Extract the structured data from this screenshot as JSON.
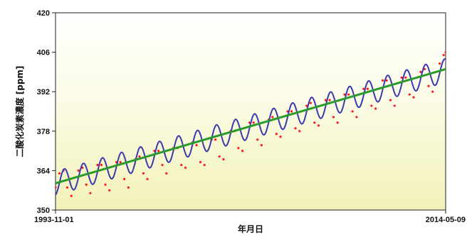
{
  "chart_data": {
    "type": "scatter",
    "title": "",
    "xlabel": "年月日",
    "ylabel": "二酸化炭素濃度 [ppm]",
    "x_ticks": [
      "1993-11-01",
      "2014-05-09"
    ],
    "y_ticks": [
      350,
      364,
      378,
      392,
      406,
      420
    ],
    "ylim": [
      350,
      420
    ],
    "xlim": [
      "1993-11-01",
      "2014-05-09"
    ],
    "grid": false,
    "background": "yellow-to-white gradient",
    "colors": {
      "observed": "#ff1a1a",
      "fit": "#3a3ab0",
      "trend": "#2a9a2a"
    },
    "series": [
      {
        "kind": "points",
        "color": "#ff1a1a",
        "x": [
          "1993-11-01",
          "1994-01-15",
          "1994-04-01",
          "1994-06-15",
          "1994-09-01",
          "1995-01-15",
          "1995-04-01",
          "1995-06-15",
          "1995-09-01",
          "1996-01-15",
          "1996-04-01",
          "1996-06-15",
          "1996-09-01",
          "1997-01-15",
          "1997-04-01",
          "1997-06-15",
          "1997-09-01",
          "1998-01-15",
          "1998-04-01",
          "1998-06-15",
          "1998-09-01",
          "1999-01-15",
          "1999-04-01",
          "1999-06-15",
          "1999-09-01",
          "2000-01-15",
          "2000-04-01",
          "2000-06-15",
          "2000-09-01",
          "2001-01-15",
          "2001-04-01",
          "2001-06-15",
          "2001-09-01",
          "2002-01-15",
          "2002-04-01",
          "2002-06-15",
          "2002-09-01",
          "2003-01-15",
          "2003-04-01",
          "2003-06-15",
          "2003-09-01",
          "2004-01-15",
          "2004-04-01",
          "2004-06-15",
          "2004-09-01",
          "2005-01-15",
          "2005-04-01",
          "2005-06-15",
          "2005-09-01",
          "2006-01-15",
          "2006-04-01",
          "2006-06-15",
          "2006-09-01",
          "2007-01-15",
          "2007-04-01",
          "2007-06-15",
          "2007-09-01",
          "2008-01-15",
          "2008-04-01",
          "2008-06-15",
          "2008-09-01",
          "2009-01-15",
          "2009-04-01",
          "2009-06-15",
          "2009-09-01",
          "2010-01-15",
          "2010-04-01",
          "2010-06-15",
          "2010-09-01",
          "2011-01-15",
          "2011-04-01",
          "2011-06-15",
          "2011-09-01",
          "2012-01-15",
          "2012-04-01",
          "2012-06-15",
          "2012-09-01",
          "2013-01-15",
          "2013-04-01",
          "2013-06-15",
          "2013-09-01",
          "2014-01-15",
          "2014-04-01",
          "2014-05-09"
        ],
        "y": [
          358,
          363,
          364,
          358,
          355,
          364,
          365,
          359,
          356,
          366,
          366,
          359,
          357,
          367,
          367,
          361,
          358,
          368,
          369,
          363,
          361,
          371,
          371,
          366,
          363,
          372,
          372,
          366,
          365,
          374,
          373,
          367,
          366,
          375,
          375,
          369,
          368,
          378,
          378,
          372,
          371,
          381,
          381,
          375,
          373,
          382,
          383,
          377,
          376,
          385,
          385,
          379,
          378,
          387,
          388,
          381,
          380,
          389,
          389,
          383,
          381,
          391,
          391,
          385,
          383,
          393,
          393,
          387,
          386,
          396,
          396,
          389,
          387,
          397,
          397,
          391,
          390,
          399,
          400,
          394,
          392,
          402,
          405,
          406
        ]
      },
      {
        "kind": "seasonal-fit",
        "color": "#3a3ab0",
        "start_year": 1993.83,
        "end_year": 2014.35,
        "base": 359.5,
        "slope_per_year": 1.95,
        "amplitude": 4.2
      },
      {
        "kind": "trend",
        "color": "#2a9a2a",
        "x": [
          "1993-11-01",
          "2014-05-09"
        ],
        "y": [
          359.5,
          400
        ]
      }
    ]
  }
}
